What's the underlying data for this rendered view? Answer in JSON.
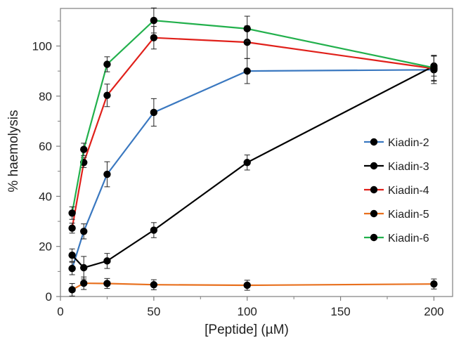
{
  "chart_data": {
    "type": "line",
    "title": "",
    "xlabel": "[Peptide] (µM)",
    "ylabel": "% haemolysis",
    "xlim": [
      0,
      210
    ],
    "ylim": [
      0,
      115
    ],
    "x_ticks": [
      0,
      50,
      100,
      150,
      200
    ],
    "x_tick_labels": [
      "0",
      "50",
      "100",
      "150",
      "200"
    ],
    "y_ticks": [
      0,
      20,
      40,
      60,
      80,
      100
    ],
    "y_tick_labels": [
      "0",
      "20",
      "40",
      "60",
      "80",
      "100"
    ],
    "grid": false,
    "legend_position": "right",
    "marker_color": "#000000",
    "series": [
      {
        "name": "Kiadin-2",
        "color": "#3a78c0",
        "points": [
          {
            "x": 6.25,
            "y": 11.2,
            "err": 2.5
          },
          {
            "x": 12.5,
            "y": 26,
            "err": 3
          },
          {
            "x": 25,
            "y": 48.8,
            "err": 5
          },
          {
            "x": 50,
            "y": 73.5,
            "err": 5.5
          },
          {
            "x": 100,
            "y": 90,
            "err": 5
          },
          {
            "x": 200,
            "y": 90.5,
            "err": 5.5
          }
        ]
      },
      {
        "name": "Kiadin-3",
        "color": "#000000",
        "points": [
          {
            "x": 6.25,
            "y": 16.5,
            "err": 2.5
          },
          {
            "x": 12.5,
            "y": 11.5,
            "err": 4.5
          },
          {
            "x": 25,
            "y": 14.2,
            "err": 3
          },
          {
            "x": 50,
            "y": 26.5,
            "err": 3
          },
          {
            "x": 100,
            "y": 53.5,
            "err": 3
          },
          {
            "x": 200,
            "y": 92,
            "err": 4
          }
        ]
      },
      {
        "name": "Kiadin-4",
        "color": "#e0201a",
        "points": [
          {
            "x": 6.25,
            "y": 27.3,
            "err": 2
          },
          {
            "x": 12.5,
            "y": 53.5,
            "err": 2
          },
          {
            "x": 25,
            "y": 80.3,
            "err": 4.5
          },
          {
            "x": 50,
            "y": 103.3,
            "err": 4.5
          },
          {
            "x": 100,
            "y": 101.5,
            "err": 6.5
          },
          {
            "x": 200,
            "y": 91,
            "err": 5
          }
        ]
      },
      {
        "name": "Kiadin-5",
        "color": "#e8701e",
        "points": [
          {
            "x": 6.25,
            "y": 2.7,
            "err": 2.5
          },
          {
            "x": 12.5,
            "y": 5.3,
            "err": 2.5
          },
          {
            "x": 25,
            "y": 5.2,
            "err": 2
          },
          {
            "x": 50,
            "y": 4.7,
            "err": 2
          },
          {
            "x": 100,
            "y": 4.5,
            "err": 2
          },
          {
            "x": 200,
            "y": 5,
            "err": 2
          }
        ]
      },
      {
        "name": "Kiadin-6",
        "color": "#22b04c",
        "points": [
          {
            "x": 6.25,
            "y": 33.3,
            "err": 2.5
          },
          {
            "x": 12.5,
            "y": 58.7,
            "err": 2.5
          },
          {
            "x": 25,
            "y": 92.7,
            "err": 3
          },
          {
            "x": 50,
            "y": 110.2,
            "err": 5
          },
          {
            "x": 100,
            "y": 106.9,
            "err": 5
          },
          {
            "x": 200,
            "y": 91.3,
            "err": 5
          }
        ]
      }
    ]
  }
}
